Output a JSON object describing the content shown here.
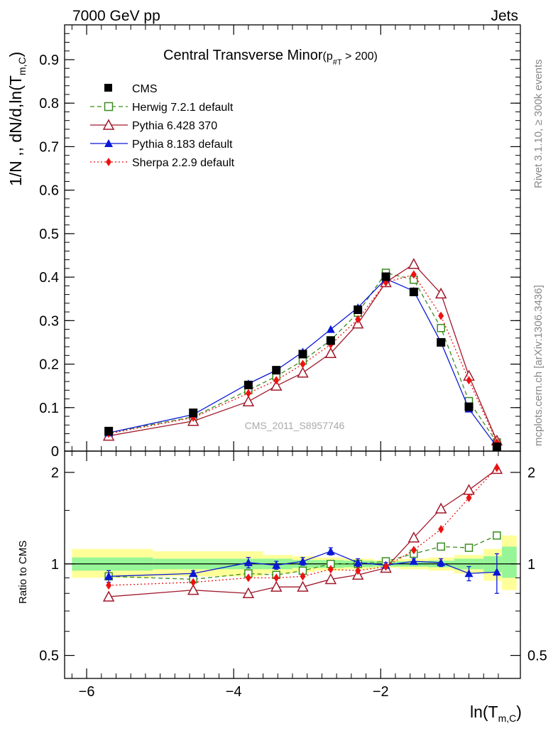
{
  "header": {
    "left": "7000 GeV pp",
    "right": "Jets"
  },
  "side_labels": {
    "rivet": "Rivet 3.1.10, ≥ 300k events",
    "mcplots": "mcplots.cern.ch [arXiv:1306.3436]"
  },
  "watermark": "CMS_2011_S8957746",
  "title": {
    "main": "Central Transverse Minor",
    "sub_open": "(p",
    "sub_sub": "#T",
    "sub_close": " > 200)"
  },
  "y_label_main": {
    "text": "1/N ,, dN/d,ln(T",
    "sub": "m,C",
    "close": ")"
  },
  "y_label_ratio": "Ratio to CMS",
  "x_label": {
    "text": "ln(T",
    "sub": "m,C",
    "close": ")"
  },
  "legend": [
    {
      "label": "CMS"
    },
    {
      "label": "Herwig 7.2.1 default"
    },
    {
      "label": "Pythia 6.428 370"
    },
    {
      "label": "Pythia 8.183 default"
    },
    {
      "label": "Sherpa 2.2.9 default"
    }
  ],
  "chart_data": {
    "type": "line",
    "x": [
      -5.7,
      -4.55,
      -3.8,
      -3.42,
      -3.06,
      -2.68,
      -2.31,
      -1.93,
      -1.55,
      -1.18,
      -0.8,
      -0.42
    ],
    "xlim": [
      -6.3,
      -0.1
    ],
    "x_ticks": [
      -6,
      -4,
      -2
    ],
    "x_tick_labels": [
      "−6",
      "−4",
      "−2"
    ],
    "main": {
      "ylim": [
        0,
        0.98
      ],
      "y_ticks": [
        0,
        0.1,
        0.2,
        0.3,
        0.4,
        0.5,
        0.6,
        0.7,
        0.8,
        0.9
      ],
      "y_tick_labels": [
        "0",
        "0.1",
        "0.2",
        "0.3",
        "0.4",
        "0.5",
        "0.6",
        "0.7",
        "0.8",
        "0.9"
      ]
    },
    "ratio": {
      "scale": "log",
      "ylim": [
        0.42,
        2.35
      ],
      "y_ticks": [
        0.5,
        1,
        2
      ],
      "y_tick_labels": [
        "0.5",
        "1",
        "2"
      ],
      "band_edges": [
        -6.2,
        -5.1,
        -3.6,
        -3.2,
        -2.9,
        -2.5,
        -2.1,
        -1.75,
        -1.35,
        -1.0,
        -0.6,
        -0.35,
        -0.15
      ],
      "band_1sigma": [
        [
          0.95,
          1.05
        ],
        [
          0.96,
          1.04
        ],
        [
          0.96,
          1.04
        ],
        [
          0.97,
          1.03
        ],
        [
          0.97,
          1.03
        ],
        [
          0.975,
          1.025
        ],
        [
          0.98,
          1.02
        ],
        [
          0.98,
          1.02
        ],
        [
          0.975,
          1.025
        ],
        [
          0.96,
          1.04
        ],
        [
          0.94,
          1.06
        ],
        [
          0.9,
          1.14
        ]
      ],
      "band_2sigma": [
        [
          0.9,
          1.12
        ],
        [
          0.91,
          1.1
        ],
        [
          0.93,
          1.07
        ],
        [
          0.94,
          1.06
        ],
        [
          0.95,
          1.05
        ],
        [
          0.96,
          1.04
        ],
        [
          0.97,
          1.03
        ],
        [
          0.96,
          1.04
        ],
        [
          0.95,
          1.05
        ],
        [
          0.93,
          1.07
        ],
        [
          0.88,
          1.12
        ],
        [
          0.82,
          1.24
        ]
      ]
    },
    "series": [
      {
        "name": "CMS",
        "color": "#000000",
        "marker": "square-filled",
        "values": [
          0.046,
          0.088,
          0.152,
          0.186,
          0.223,
          0.254,
          0.325,
          0.401,
          0.366,
          0.25,
          0.102,
          0.01
        ],
        "ratio": [
          1,
          1,
          1,
          1,
          1,
          1,
          1,
          1,
          1,
          1,
          1,
          1
        ]
      },
      {
        "name": "Herwig 7.2.1 default",
        "color": "#3a8d1e",
        "marker": "square-open",
        "dash": "6,4",
        "values": [
          0.042,
          0.079,
          0.14,
          0.172,
          0.208,
          0.255,
          0.318,
          0.41,
          0.394,
          0.283,
          0.115,
          0.02
        ],
        "ratio": [
          0.91,
          0.89,
          0.93,
          0.92,
          0.95,
          1.0,
          1.0,
          1.02,
          1.08,
          1.14,
          1.13,
          1.24
        ]
      },
      {
        "name": "Pythia 6.428 370",
        "color": "#a0192c",
        "marker": "triangle-open",
        "values": [
          0.035,
          0.069,
          0.114,
          0.15,
          0.18,
          0.225,
          0.293,
          0.388,
          0.43,
          0.362,
          0.173,
          0.024
        ],
        "ratio": [
          0.78,
          0.82,
          0.8,
          0.84,
          0.84,
          0.89,
          0.92,
          0.97,
          1.22,
          1.52,
          1.75,
          2.05
        ]
      },
      {
        "name": "Pythia 8.183 default",
        "color": "#0a18d6",
        "marker": "triangle-filled",
        "values": [
          0.042,
          0.084,
          0.155,
          0.186,
          0.228,
          0.28,
          0.33,
          0.396,
          0.368,
          0.25,
          0.097,
          0.01
        ],
        "ratio": [
          0.91,
          0.93,
          1.01,
          0.99,
          1.02,
          1.1,
          1.01,
          0.99,
          1.02,
          1.01,
          0.93,
          0.94
        ],
        "ratio_err": [
          0.04,
          0.02,
          0.04,
          0.03,
          0.03,
          0.03,
          0.03,
          0.02,
          0.02,
          0.03,
          0.05,
          0.14
        ]
      },
      {
        "name": "Sherpa 2.2.9 default",
        "color": "#ee1111",
        "marker": "diamond-filled",
        "dash": "2,3",
        "values": [
          0.04,
          0.077,
          0.133,
          0.163,
          0.2,
          0.245,
          0.303,
          0.388,
          0.406,
          0.311,
          0.163,
          0.02
        ],
        "ratio": [
          0.85,
          0.87,
          0.9,
          0.9,
          0.91,
          0.96,
          0.95,
          0.98,
          1.11,
          1.3,
          1.65,
          2.07
        ]
      }
    ]
  }
}
